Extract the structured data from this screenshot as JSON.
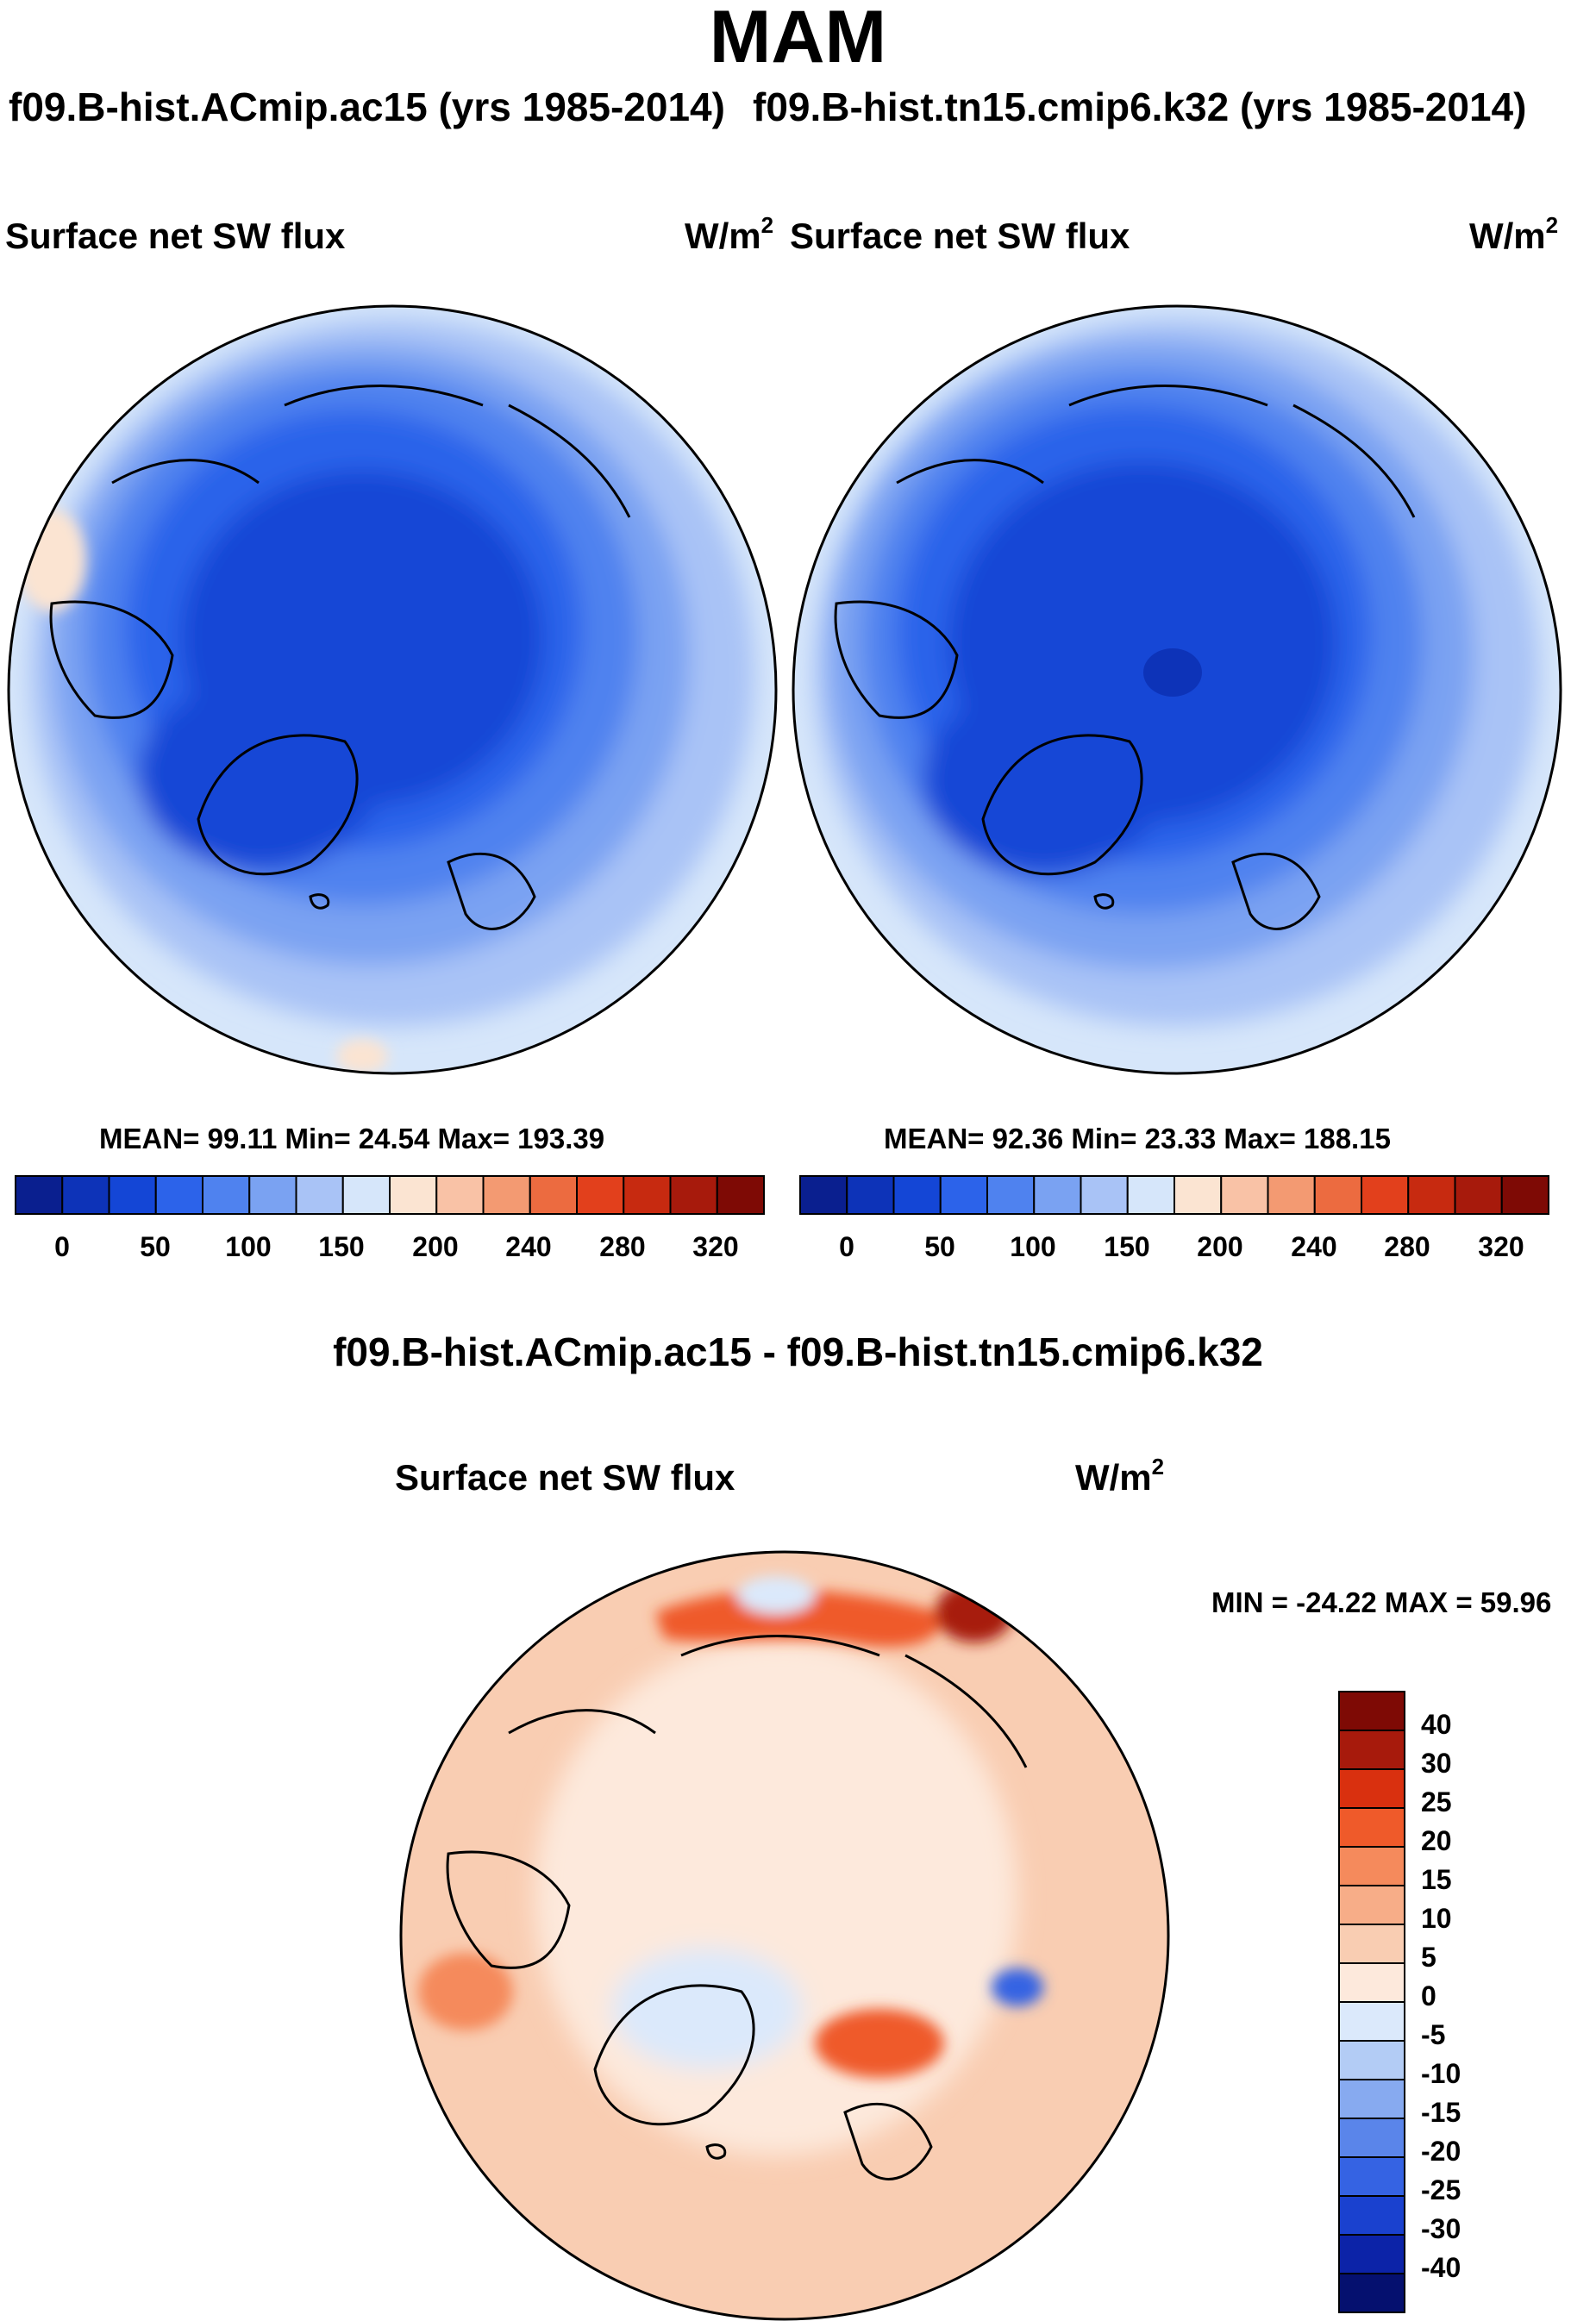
{
  "page": {
    "title": "MAM",
    "left_case_title": "f09.B-hist.ACmip.ac15 (yrs 1985-2014)",
    "right_case_title": "f09.B-hist.tn15.cmip6.k32 (yrs 1985-2014)",
    "diff_title": "f09.B-hist.ACmip.ac15 - f09.B-hist.tn15.cmip6.k32"
  },
  "panels": {
    "left": {
      "variable": "Surface net SW flux",
      "units_base": "W/m",
      "units_exp": "2",
      "stats": "MEAN=  99.11  Min=  24.54  Max= 193.39"
    },
    "right": {
      "variable": "Surface net SW flux",
      "units_base": "W/m",
      "units_exp": "2",
      "stats": "MEAN=  92.36  Min=  23.33  Max= 188.15"
    },
    "diff": {
      "variable": "Surface net SW flux",
      "units_base": "W/m",
      "units_exp": "2",
      "stats": "MIN = -24.22 MAX =  59.96"
    }
  },
  "chart_data": [
    {
      "type": "heatmap",
      "projection": "north-polar-stereographic",
      "title": "f09.B-hist.ACmip.ac15 (yrs 1985-2014)",
      "variable": "Surface net SW flux",
      "units": "W/m2",
      "stats": {
        "mean": 99.11,
        "min": 24.54,
        "max": 193.39
      },
      "colorbar": {
        "orientation": "horizontal",
        "tick_labels": [
          "0",
          "50",
          "100",
          "150",
          "200",
          "240",
          "280",
          "320"
        ],
        "colors": [
          "#0a1f8f",
          "#0d33b8",
          "#1446d6",
          "#2c63ea",
          "#4f82ef",
          "#7aa2f2",
          "#a9c3f6",
          "#d6e6fa",
          "#fbe4d2",
          "#f9c2a6",
          "#f39a72",
          "#ec6b40",
          "#e2401c",
          "#c72a10",
          "#a71a0c",
          "#7e0a05"
        ]
      }
    },
    {
      "type": "heatmap",
      "projection": "north-polar-stereographic",
      "title": "f09.B-hist.tn15.cmip6.k32 (yrs 1985-2014)",
      "variable": "Surface net SW flux",
      "units": "W/m2",
      "stats": {
        "mean": 92.36,
        "min": 23.33,
        "max": 188.15
      },
      "colorbar": {
        "orientation": "horizontal",
        "tick_labels": [
          "0",
          "50",
          "100",
          "150",
          "200",
          "240",
          "280",
          "320"
        ],
        "colors": [
          "#0a1f8f",
          "#0d33b8",
          "#1446d6",
          "#2c63ea",
          "#4f82ef",
          "#7aa2f2",
          "#a9c3f6",
          "#d6e6fa",
          "#fbe4d2",
          "#f9c2a6",
          "#f39a72",
          "#ec6b40",
          "#e2401c",
          "#c72a10",
          "#a71a0c",
          "#7e0a05"
        ]
      }
    },
    {
      "type": "heatmap",
      "projection": "north-polar-stereographic",
      "title": "f09.B-hist.ACmip.ac15 - f09.B-hist.tn15.cmip6.k32",
      "variable": "Surface net SW flux",
      "units": "W/m2",
      "stats": {
        "min": -24.22,
        "max": 59.96
      },
      "colorbar": {
        "orientation": "vertical",
        "tick_labels": [
          "40",
          "30",
          "25",
          "20",
          "15",
          "10",
          "5",
          "0",
          "-5",
          "-10",
          "-15",
          "-20",
          "-25",
          "-30",
          "-40"
        ],
        "colors": [
          "#7e0a05",
          "#a71a0c",
          "#d9300f",
          "#ef5a2a",
          "#f58a5c",
          "#f7ad88",
          "#f9cdb2",
          "#fde9dc",
          "#dbe9fb",
          "#b3ccf5",
          "#87aaf0",
          "#5a85ea",
          "#3563e3",
          "#1a41cf",
          "#0c23a8",
          "#05106f"
        ]
      }
    }
  ]
}
